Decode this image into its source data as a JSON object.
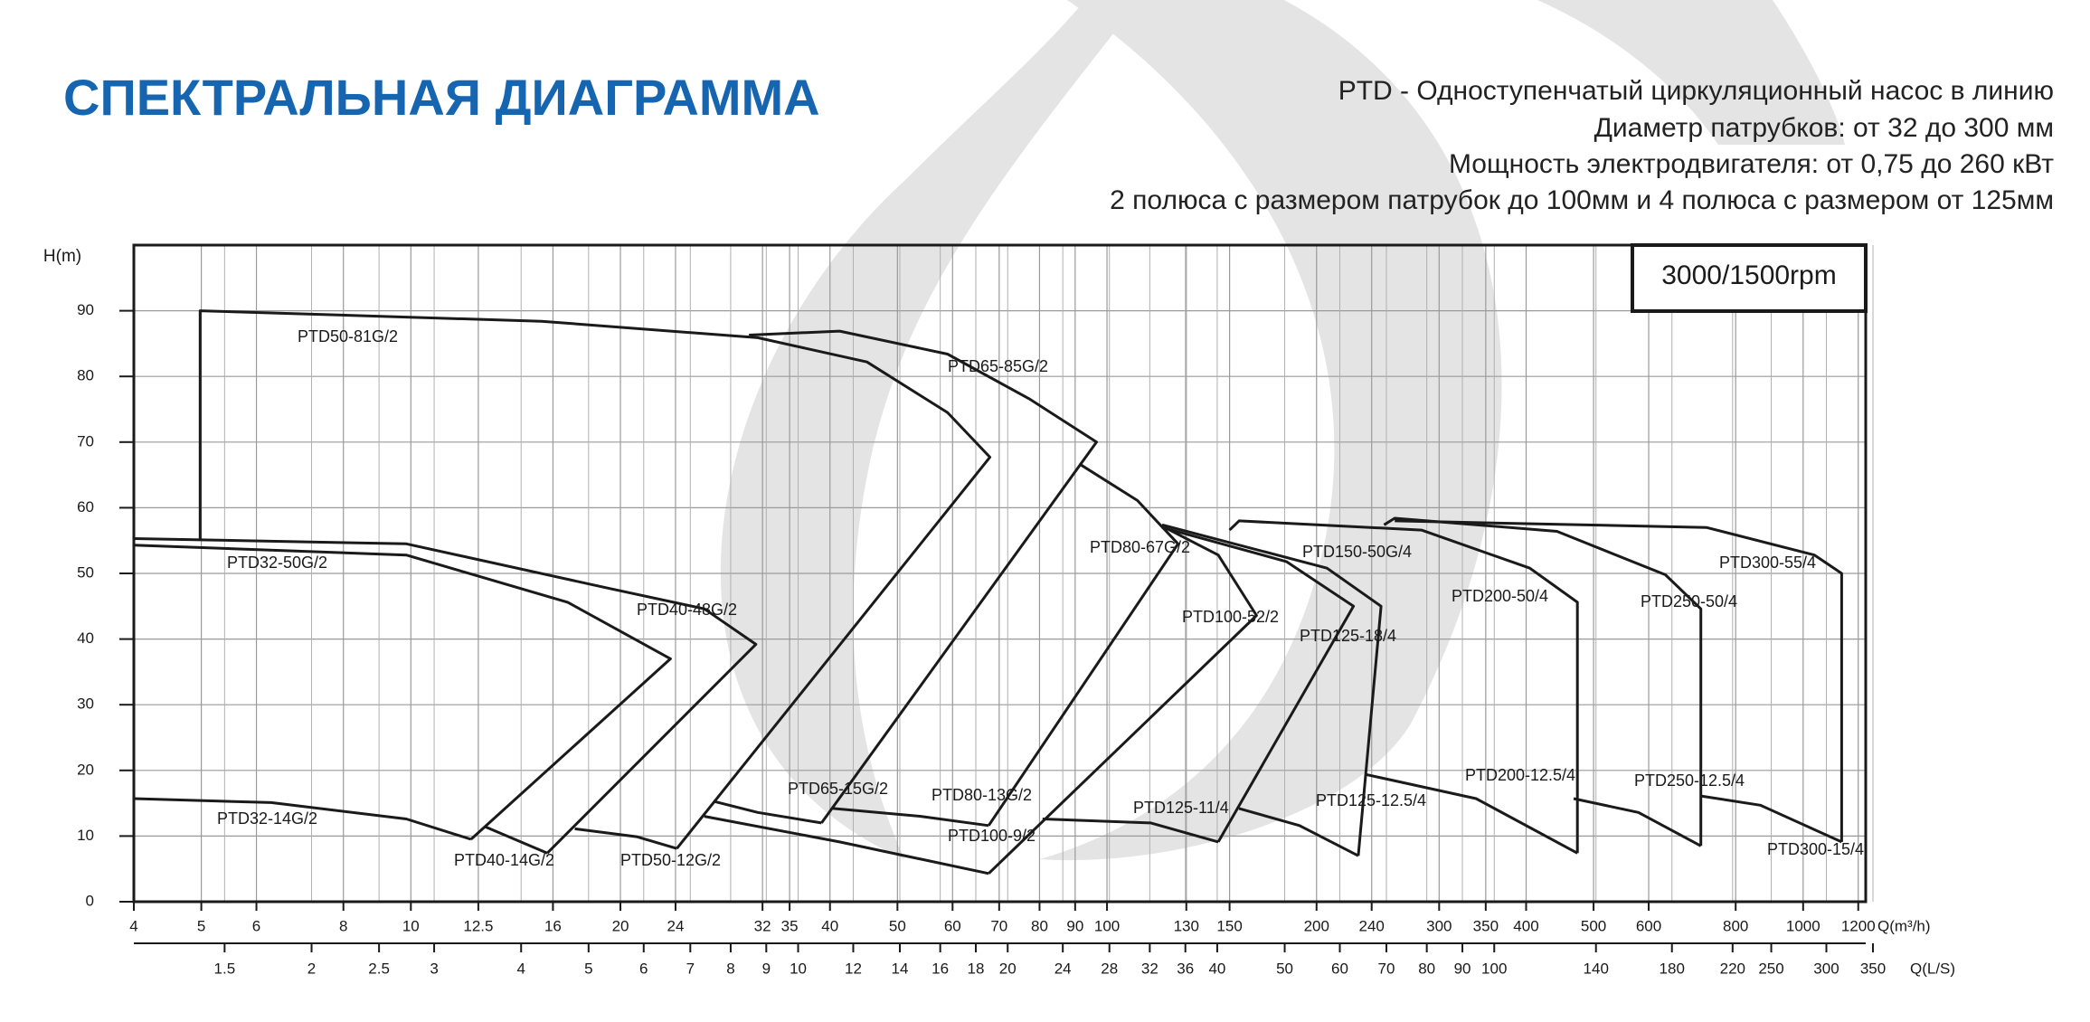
{
  "chart_data": {
    "type": "line",
    "title": "СПЕКТРАЛЬНАЯ ДИАГРАММА",
    "subtitle": [
      "PTD - Одноступенчатый циркуляционный насос в линию",
      "Диаметр патрубков: от 32 до 300 мм",
      "Мощность электродвигателя: от 0,75 до 260 кВт",
      "2 полюса с размером патрубок до 100мм и 4 полюса с размером от 125мм"
    ],
    "annotation": "3000/1500rpm",
    "ylabel": "H(m)",
    "xlabel": "Q(m³/h)",
    "x2label": "Q(L/S)",
    "xscale": "log",
    "grid": true,
    "color": "#1a1a1a",
    "xlim": [
      4,
      1230
    ],
    "xticks": [
      4,
      5,
      6,
      8,
      10,
      12.5,
      16,
      20,
      24,
      32,
      35,
      40,
      50,
      60,
      70,
      80,
      90,
      100,
      130,
      150,
      200,
      240,
      300,
      350,
      400,
      500,
      600,
      800,
      1000,
      1200
    ],
    "x2lim": [
      1.111,
      341.7
    ],
    "x2ticks": [
      1.5,
      2,
      2.5,
      3,
      4,
      5,
      6,
      7,
      8,
      9,
      10,
      12,
      14,
      16,
      18,
      20,
      24,
      28,
      32,
      36,
      40,
      50,
      60,
      70,
      80,
      90,
      100,
      140,
      180,
      220,
      250,
      300,
      350
    ],
    "ylim": [
      0,
      100
    ],
    "yticks": [
      0,
      10,
      20,
      30,
      40,
      50,
      60,
      70,
      80,
      90
    ],
    "series": [
      {
        "name": "PTD32-50G/2",
        "x": [
          4,
          9.85,
          16.8,
          23.6,
          12.2
        ],
        "values": [
          54.3,
          52.8,
          45.6,
          37.0,
          9.5
        ]
      },
      {
        "name": "PTD32-14G/2",
        "x": [
          4,
          6.3,
          9.85,
          12.2
        ],
        "values": [
          15.7,
          15.1,
          12.6,
          9.5
        ]
      },
      {
        "name": "PTD50-81G/2",
        "x": [
          4.98,
          4.98,
          15.4,
          31.5,
          45.2,
          59.0,
          67.9,
          24.1
        ],
        "values": [
          55.3,
          90.0,
          88.4,
          85.9,
          82.2,
          74.5,
          67.7,
          8.1
        ]
      },
      {
        "name": "PTD40-48G/2",
        "x": [
          4,
          9.85,
          19.3,
          26.4,
          31.3,
          15.7
        ],
        "values": [
          55.3,
          54.5,
          47.7,
          44.6,
          39.2,
          7.4
        ]
      },
      {
        "name": "PTD40-14G/2",
        "x": [
          12.8,
          15.7
        ],
        "values": [
          11.4,
          7.4
        ]
      },
      {
        "name": "PTD50-12G/2",
        "x": [
          17.2,
          21.1,
          24.1
        ],
        "values": [
          11.1,
          9.9,
          8.1
        ]
      },
      {
        "name": "PTD65-85G/2",
        "x": [
          30.6,
          41.3,
          59.0,
          77.3,
          96.6,
          38.9
        ],
        "values": [
          86.3,
          86.9,
          83.4,
          76.6,
          70.0,
          12.0
        ]
      },
      {
        "name": "PTD65-15G/2",
        "x": [
          27.2,
          31.5,
          38.9
        ],
        "values": [
          15.3,
          13.6,
          12.0
        ]
      },
      {
        "name": "PTD80-67G/2",
        "x": [
          91.2,
          110.6,
          126.5,
          67.6
        ],
        "values": [
          66.7,
          61.1,
          54.5,
          11.6
        ]
      },
      {
        "name": "PTD80-13G/2",
        "x": [
          40.4,
          54.0,
          67.6
        ],
        "values": [
          14.2,
          13.0,
          11.6
        ]
      },
      {
        "name": "PTD100-52/2",
        "x": [
          121,
          144.5,
          164,
          67.6
        ],
        "values": [
          57.0,
          52.8,
          43.6,
          4.3
        ]
      },
      {
        "name": "PTD100-9/2",
        "x": [
          26.4,
          41.3,
          67.6
        ],
        "values": [
          13.0,
          9.1,
          4.3
        ]
      },
      {
        "name": "PTD125-11/4",
        "x": [
          80.8,
          115.6,
          144.5
        ],
        "values": [
          12.6,
          12.0,
          9.1
        ]
      },
      {
        "name": "PTD125-18/4",
        "x": [
          120,
          181,
          226,
          144.5
        ],
        "values": [
          57.0,
          51.8,
          45.0,
          9.1
        ]
      },
      {
        "name": "PTD125-12.5/4",
        "x": [
          154.8,
          189,
          229.6
        ],
        "values": [
          14.2,
          11.6,
          7.0
        ]
      },
      {
        "name": "PTD150-50G/4",
        "x": [
          120,
          207,
          247.6,
          229.6
        ],
        "values": [
          57.4,
          50.8,
          45.0,
          7.0
        ]
      },
      {
        "name": "PTD200-50/4",
        "x": [
          150,
          154.8,
          283,
          405,
          474,
          474
        ],
        "values": [
          56.6,
          58.0,
          56.6,
          50.8,
          45.6,
          7.4
        ]
      },
      {
        "name": "PTD200-12.5/4",
        "x": [
          235,
          339,
          474
        ],
        "values": [
          19.4,
          15.7,
          7.4
        ]
      },
      {
        "name": "PTD250-50/4",
        "x": [
          250,
          259,
          443,
          634,
          713,
          713
        ],
        "values": [
          57.4,
          58.4,
          56.4,
          49.8,
          44.6,
          8.5
        ]
      },
      {
        "name": "PTD250-12.5/4",
        "x": [
          468,
          580,
          713
        ],
        "values": [
          15.7,
          13.6,
          8.5
        ]
      },
      {
        "name": "PTD300-55/4",
        "x": [
          259,
          726,
          1038,
          1136,
          1136
        ],
        "values": [
          58.0,
          57.0,
          52.8,
          50.0,
          9.1
        ]
      },
      {
        "name": "PTD300-15/4",
        "x": [
          713,
          868,
          1136
        ],
        "values": [
          16.1,
          14.7,
          9.1
        ]
      }
    ]
  }
}
